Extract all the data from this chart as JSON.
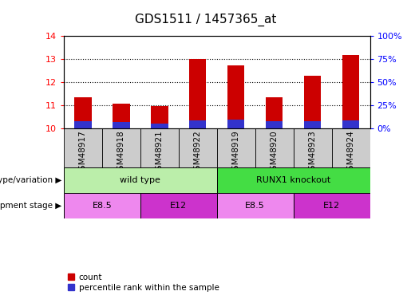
{
  "title": "GDS1511 / 1457365_at",
  "samples": [
    "GSM48917",
    "GSM48918",
    "GSM48921",
    "GSM48922",
    "GSM48919",
    "GSM48920",
    "GSM48923",
    "GSM48924"
  ],
  "count_values": [
    11.35,
    11.07,
    10.98,
    13.0,
    12.73,
    11.35,
    12.28,
    13.18
  ],
  "percentile_pct": [
    8,
    7,
    5,
    9,
    10,
    8,
    8,
    9
  ],
  "ymin": 10,
  "ymax": 14,
  "yticks": [
    10,
    11,
    12,
    13,
    14
  ],
  "right_yticks_pct": [
    0,
    25,
    50,
    75,
    100
  ],
  "bar_color": "#cc0000",
  "percentile_color": "#3333cc",
  "sample_box_color": "#cccccc",
  "genotype_groups": [
    {
      "label": "wild type",
      "start": 0,
      "end": 4,
      "color": "#bbeeaa"
    },
    {
      "label": "RUNX1 knockout",
      "start": 4,
      "end": 8,
      "color": "#44dd44"
    }
  ],
  "stage_groups": [
    {
      "label": "E8.5",
      "start": 0,
      "end": 2,
      "color": "#ee88ee"
    },
    {
      "label": "E12",
      "start": 2,
      "end": 4,
      "color": "#cc33cc"
    },
    {
      "label": "E8.5",
      "start": 4,
      "end": 6,
      "color": "#ee88ee"
    },
    {
      "label": "E12",
      "start": 6,
      "end": 8,
      "color": "#cc33cc"
    }
  ],
  "legend_count_label": "count",
  "legend_percentile_label": "percentile rank within the sample",
  "genotype_label": "genotype/variation",
  "stage_label": "development stage",
  "bar_width": 0.45,
  "title_fontsize": 11,
  "axis_tick_fontsize": 8,
  "sample_fontsize": 7.5,
  "annot_fontsize": 8,
  "legend_fontsize": 7.5
}
